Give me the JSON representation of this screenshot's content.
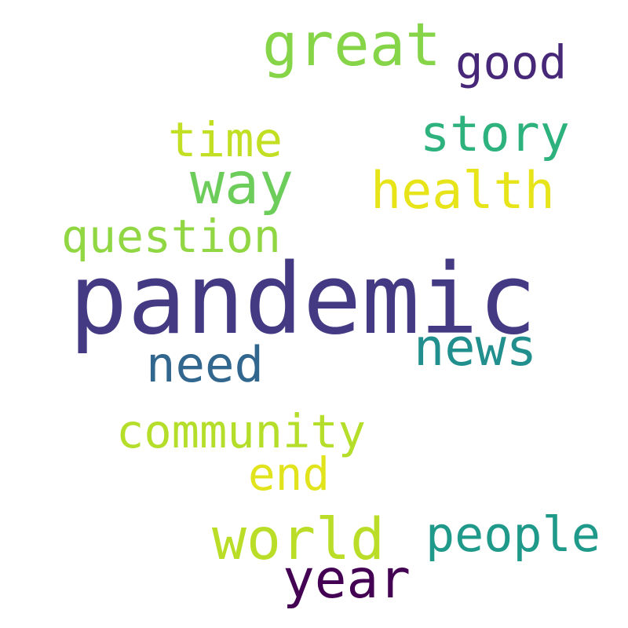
{
  "words": [
    {
      "text": "pandemic",
      "color": "#443a83"
    },
    {
      "text": "great",
      "color": "#86d549"
    },
    {
      "text": "good",
      "color": "#472878"
    },
    {
      "text": "story",
      "color": "#2db27d"
    },
    {
      "text": "time",
      "color": "#c2df23"
    },
    {
      "text": "way",
      "color": "#6ccd5a"
    },
    {
      "text": "health",
      "color": "#e7e419"
    },
    {
      "text": "question",
      "color": "#90d743"
    },
    {
      "text": "news",
      "color": "#218f8d"
    },
    {
      "text": "need",
      "color": "#31668e"
    },
    {
      "text": "community",
      "color": "#b5de2b"
    },
    {
      "text": "end",
      "color": "#e1e41d"
    },
    {
      "text": "world",
      "color": "#bade28"
    },
    {
      "text": "people",
      "color": "#1f9a8a"
    },
    {
      "text": "year",
      "color": "#440154"
    }
  ]
}
